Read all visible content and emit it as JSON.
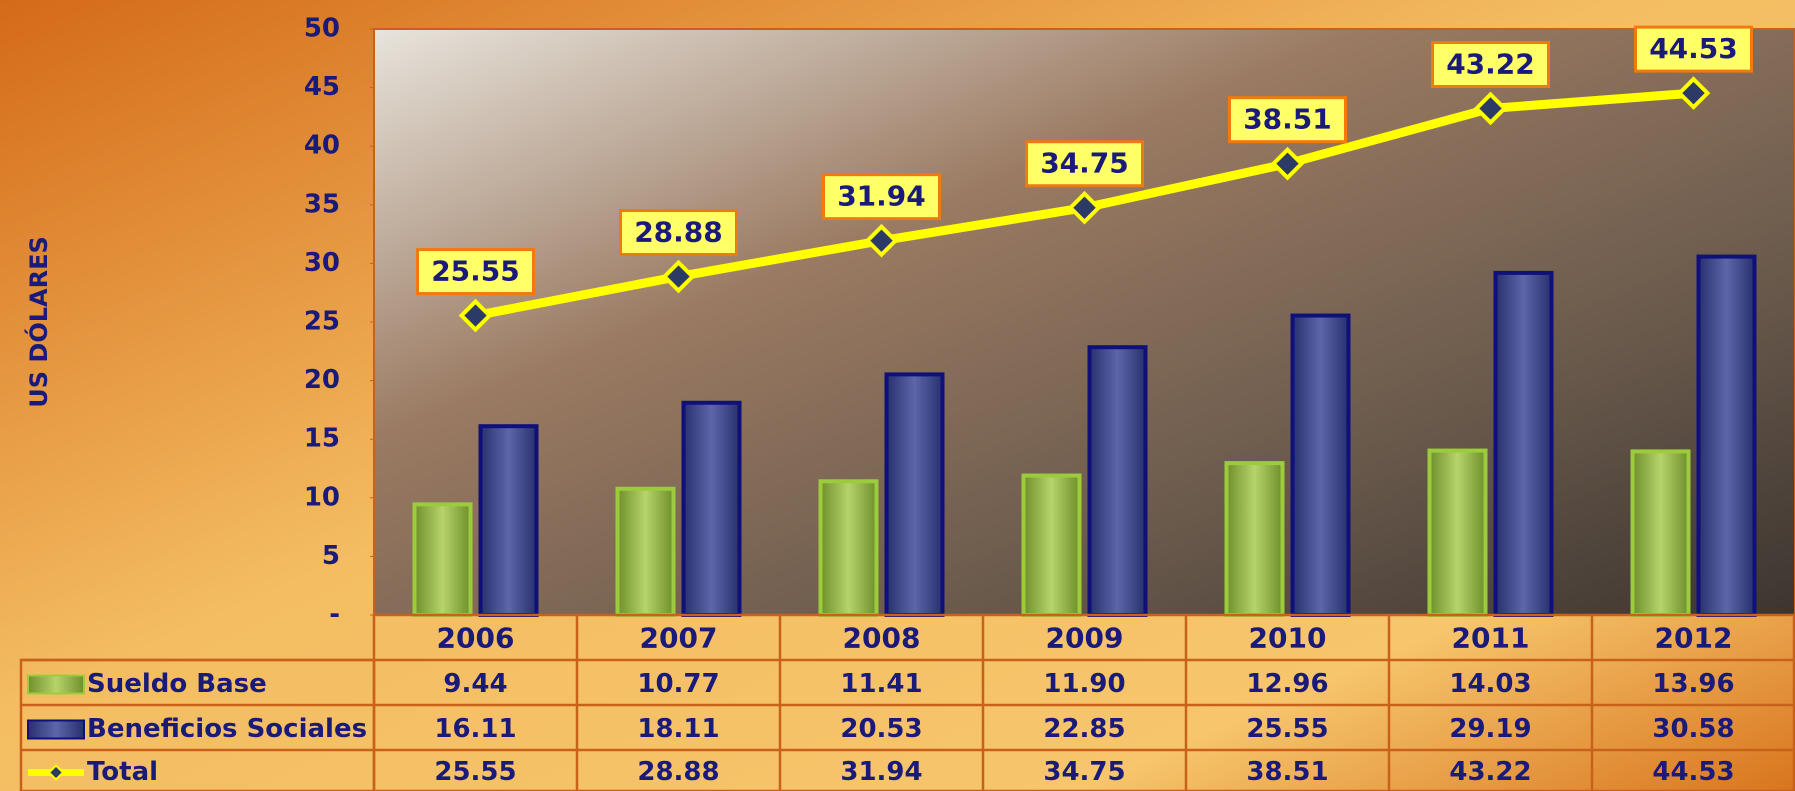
{
  "chart_data": {
    "type": "bar",
    "ylabel": "US DÓLARES",
    "categories": [
      "2006",
      "2007",
      "2008",
      "2009",
      "2010",
      "2011",
      "2012"
    ],
    "series": [
      {
        "name": "Sueldo Base",
        "type": "bar",
        "color": "#8fb043",
        "values": [
          9.44,
          10.77,
          11.41,
          11.9,
          12.96,
          14.03,
          13.96
        ],
        "value_labels": [
          "9.44",
          "10.77",
          "11.41",
          "11.90",
          "12.96",
          "14.03",
          "13.96"
        ]
      },
      {
        "name": "Beneficios Sociales",
        "type": "bar",
        "color": "#3c4890",
        "values": [
          16.11,
          18.11,
          20.53,
          22.85,
          25.55,
          29.19,
          30.58
        ],
        "value_labels": [
          "16.11",
          "18.11",
          "20.53",
          "22.85",
          "25.55",
          "29.19",
          "30.58"
        ]
      },
      {
        "name": "Total",
        "type": "line",
        "color": "#ffff00",
        "values": [
          25.55,
          28.88,
          31.94,
          34.75,
          38.51,
          43.22,
          44.53
        ],
        "value_labels": [
          "25.55",
          "28.88",
          "31.94",
          "34.75",
          "38.51",
          "43.22",
          "44.53"
        ]
      }
    ],
    "ylim": [
      0,
      50
    ],
    "yticks": [
      {
        "value": 0,
        "label": "-"
      },
      5,
      10,
      15,
      20,
      25,
      30,
      35,
      40,
      45,
      50
    ]
  }
}
